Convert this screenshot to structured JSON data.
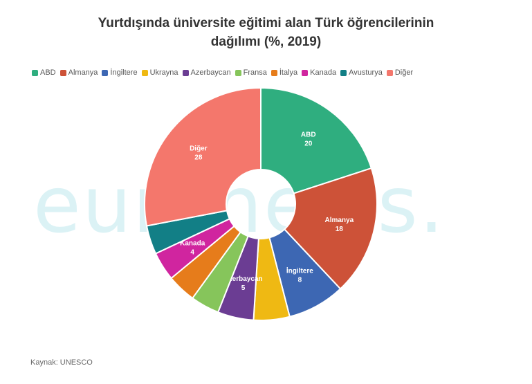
{
  "title_line1": "Yurtdışında üniversite eğitimi alan Türk öğrencilerinin",
  "title_line2": "dağılımı (%, 2019)",
  "watermark": "euronews.",
  "source": "Kaynak: UNESCO",
  "chart_data": {
    "type": "pie",
    "donut": true,
    "legend_position": "top",
    "slices": [
      {
        "label": "ABD",
        "value": 20,
        "color": "#2fae7f",
        "show_label": true
      },
      {
        "label": "Almanya",
        "value": 18,
        "color": "#cd5238",
        "show_label": true
      },
      {
        "label": "İngiltere",
        "value": 8,
        "color": "#3d67b3",
        "show_label": true
      },
      {
        "label": "Ukrayna",
        "value": 5,
        "color": "#efb913",
        "show_label": false
      },
      {
        "label": "Azerbaycan",
        "value": 5,
        "color": "#6b3d93",
        "show_label": true
      },
      {
        "label": "Fransa",
        "value": 4,
        "color": "#86c55b",
        "show_label": false
      },
      {
        "label": "İtalya",
        "value": 4,
        "color": "#e67c1b",
        "show_label": false
      },
      {
        "label": "Kanada",
        "value": 4,
        "color": "#d0259f",
        "show_label": true
      },
      {
        "label": "Avusturya",
        "value": 4,
        "color": "#127f86",
        "show_label": false
      },
      {
        "label": "Diğer",
        "value": 28,
        "color": "#f4776c",
        "show_label": true
      }
    ]
  }
}
